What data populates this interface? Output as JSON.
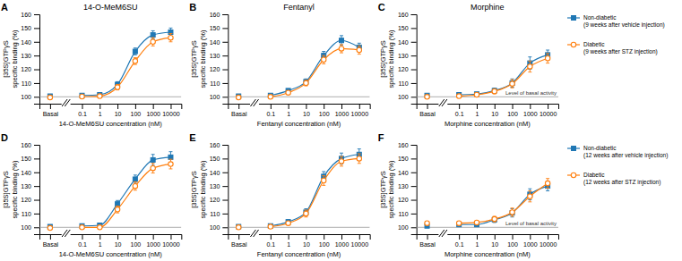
{
  "chart_data": [
    {
      "type": "line",
      "panel_label": "A",
      "title": "14-O-MeM6SU",
      "x_label": "14-O-MeM6SU concentration (nM)",
      "y_label": "[35S]GTPγS\nspecific binding (%)",
      "categories": [
        "Basal",
        "0.1",
        "1",
        "10",
        "100",
        "1000",
        "10000"
      ],
      "ylim": [
        95,
        160
      ],
      "yticks": [
        100,
        110,
        120,
        130,
        140,
        150,
        160
      ],
      "grid": false,
      "basal_line": 100,
      "series": [
        {
          "marker": "square",
          "values": [
            100.5,
            101.0,
            101.5,
            109.0,
            133.0,
            145.0,
            147.0
          ],
          "errors": [
            0.5,
            1.0,
            0.9,
            2.0,
            2.5,
            3.0,
            3.0
          ]
        },
        {
          "marker": "circle-open",
          "values": [
            99.5,
            100.2,
            100.5,
            107.0,
            126.0,
            140.0,
            143.0
          ],
          "errors": [
            0.5,
            0.8,
            0.8,
            2.0,
            2.5,
            3.0,
            3.0
          ]
        }
      ]
    },
    {
      "type": "line",
      "panel_label": "B",
      "title": "Fentanyl",
      "x_label": "Fentanyl concentration (nM)",
      "y_label": "[35S]GTPγS\nspecific binding (%)",
      "categories": [
        "Basal",
        "0.1",
        "1",
        "10",
        "100",
        "1000",
        "10000"
      ],
      "ylim": [
        95,
        160
      ],
      "yticks": [
        100,
        110,
        120,
        130,
        140,
        150,
        160
      ],
      "grid": false,
      "basal_line": 100,
      "series": [
        {
          "marker": "square",
          "values": [
            100.5,
            101.0,
            104.5,
            111.0,
            130.0,
            141.0,
            136.0
          ],
          "errors": [
            0.5,
            1.0,
            1.2,
            2.0,
            3.0,
            3.5,
            3.0
          ]
        },
        {
          "marker": "circle-open",
          "values": [
            99.5,
            100.0,
            103.0,
            110.0,
            127.0,
            135.0,
            134.0
          ],
          "errors": [
            0.4,
            0.8,
            1.0,
            2.0,
            3.0,
            3.0,
            3.0
          ]
        }
      ]
    },
    {
      "type": "line",
      "panel_label": "C",
      "title": "Morphine",
      "x_label": "Morphine concentration (nM)",
      "y_label": "[35S]GTPγS\nspecific binding (%)",
      "categories": [
        "Basal",
        "0.1",
        "1",
        "10",
        "100",
        "1000",
        "10000"
      ],
      "ylim": [
        95,
        160
      ],
      "yticks": [
        100,
        110,
        120,
        130,
        140,
        150,
        160
      ],
      "grid": false,
      "basal_line": 100,
      "legend": "right",
      "annotations": [
        "Level of basal activity"
      ],
      "series": [
        {
          "name": "Non-diabetic\n(9 weeks after vehicle injection)",
          "marker": "square",
          "values": [
            101.0,
            101.5,
            102.0,
            104.5,
            110.0,
            124.5,
            130.5
          ],
          "errors": [
            0.5,
            1.0,
            1.2,
            1.8,
            3.0,
            4.5,
            3.5
          ]
        },
        {
          "name": "Diabetic\n(9 weeks after STZ injection)",
          "marker": "circle-open",
          "values": [
            100.0,
            100.5,
            101.5,
            104.0,
            109.5,
            122.0,
            128.0
          ],
          "errors": [
            0.4,
            0.8,
            1.0,
            1.8,
            3.0,
            4.0,
            3.5
          ]
        }
      ]
    },
    {
      "type": "line",
      "panel_label": "D",
      "x_label": "14-O-MeM6SU concentration (nM)",
      "y_label": "[35S]GTPγS\nspecific binding (%)",
      "categories": [
        "Basal",
        "0.1",
        "1",
        "10",
        "100",
        "1000",
        "10000"
      ],
      "ylim": [
        95,
        160
      ],
      "yticks": [
        100,
        110,
        120,
        130,
        140,
        150,
        160
      ],
      "grid": false,
      "basal_line": 100,
      "series": [
        {
          "marker": "square",
          "values": [
            100.5,
            101.0,
            101.5,
            117.0,
            135.0,
            149.0,
            151.0
          ],
          "errors": [
            0.5,
            1.0,
            0.9,
            2.5,
            3.0,
            4.0,
            4.0
          ]
        },
        {
          "marker": "circle-open",
          "values": [
            99.5,
            100.0,
            100.0,
            113.0,
            130.0,
            143.0,
            146.0
          ],
          "errors": [
            0.5,
            0.8,
            0.8,
            2.5,
            3.0,
            3.5,
            3.5
          ]
        }
      ]
    },
    {
      "type": "line",
      "panel_label": "E",
      "x_label": "Fentanyl concentration (nM)",
      "y_label": "[35S]GTPγS\nspecific binding (%)",
      "categories": [
        "Basal",
        "0.1",
        "1",
        "10",
        "100",
        "1000",
        "10000"
      ],
      "ylim": [
        95,
        160
      ],
      "yticks": [
        100,
        110,
        120,
        130,
        140,
        150,
        160
      ],
      "grid": false,
      "basal_line": 100,
      "series": [
        {
          "marker": "square",
          "values": [
            100.5,
            101.0,
            104.0,
            111.0,
            137.0,
            150.0,
            153.0
          ],
          "errors": [
            0.5,
            1.0,
            1.5,
            2.5,
            3.5,
            4.0,
            4.0
          ]
        },
        {
          "marker": "circle-open",
          "values": [
            100.0,
            100.5,
            103.0,
            110.0,
            134.0,
            148.0,
            150.0
          ],
          "errors": [
            0.4,
            0.8,
            1.2,
            2.5,
            3.5,
            3.5,
            3.5
          ]
        }
      ]
    },
    {
      "type": "line",
      "panel_label": "F",
      "x_label": "Morphine concentration (nM)",
      "y_label": "[35S]GTPγS\nspecific binding (%)",
      "categories": [
        "Basal",
        "0.1",
        "1",
        "10",
        "100",
        "1000",
        "10000"
      ],
      "ylim": [
        95,
        160
      ],
      "yticks": [
        100,
        110,
        120,
        130,
        140,
        150,
        160
      ],
      "grid": false,
      "basal_line": 100,
      "legend": "right",
      "annotations": [
        "Level of basal activity"
      ],
      "series": [
        {
          "name": "Non-diabetic\n(12 weeks after vehicle injection)",
          "marker": "square",
          "values": [
            101.0,
            102.0,
            102.0,
            105.5,
            110.5,
            124.0,
            130.0
          ],
          "errors": [
            0.5,
            1.0,
            1.2,
            2.0,
            3.0,
            4.0,
            3.5
          ]
        },
        {
          "name": "Diabetic\n(12 weeks after STZ injection)",
          "marker": "circle-open",
          "values": [
            103.0,
            103.0,
            103.5,
            106.0,
            111.0,
            122.5,
            132.0
          ],
          "errors": [
            0.5,
            0.8,
            1.0,
            2.0,
            3.0,
            4.0,
            3.5
          ]
        }
      ]
    }
  ]
}
